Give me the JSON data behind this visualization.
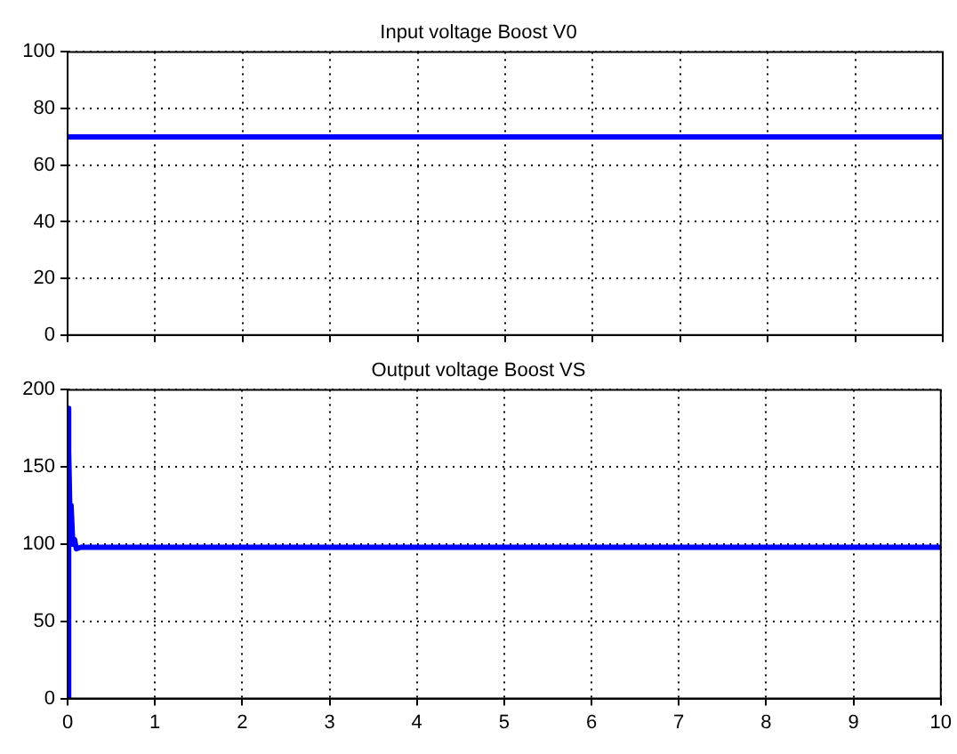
{
  "chart_data": [
    {
      "type": "line",
      "title": "Input voltage Boost V0",
      "x": [
        0,
        10
      ],
      "series": [
        {
          "color": "#0000ff",
          "values": [
            70,
            70
          ]
        }
      ],
      "xlim": [
        0,
        10
      ],
      "xticks": [
        0,
        1,
        2,
        3,
        4,
        5,
        6,
        7,
        8,
        9,
        10
      ],
      "ylim": [
        0,
        100
      ],
      "yticks": [
        0,
        20,
        40,
        60,
        80,
        100
      ],
      "grid": true,
      "tick_labels": "y",
      "line_style": "solid",
      "marker": "none"
    },
    {
      "type": "line",
      "title": "Output voltage Boost VS",
      "x": [
        0,
        0.005,
        0.02,
        0.03,
        0.04,
        0.06,
        0.08,
        0.1,
        0.15,
        10
      ],
      "series": [
        {
          "color": "#0000ff",
          "values": [
            0,
            188,
            160,
            110,
            125,
            100,
            103,
            97,
            98,
            98
          ]
        }
      ],
      "xlim": [
        0,
        10
      ],
      "xticks": [
        0,
        1,
        2,
        3,
        4,
        5,
        6,
        7,
        8,
        9,
        10
      ],
      "ylim": [
        0,
        200
      ],
      "yticks": [
        0,
        50,
        100,
        150,
        200
      ],
      "grid": true,
      "line_style": "solid",
      "marker": "none"
    }
  ]
}
